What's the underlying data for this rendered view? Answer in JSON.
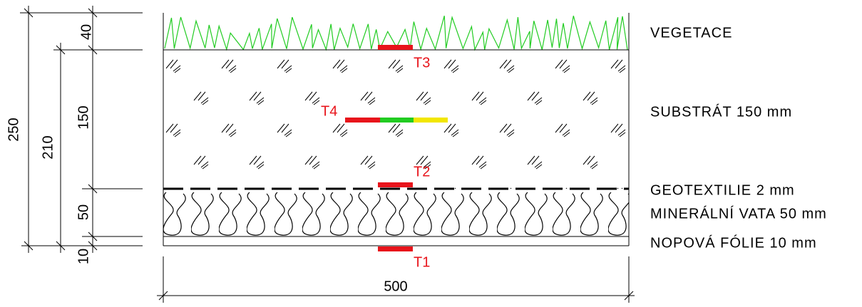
{
  "dimensions": {
    "vegetation": "40",
    "substrate": "150",
    "wool": "50",
    "foil": "10",
    "total": "250",
    "partial": "210",
    "width": "500"
  },
  "layers": [
    "VEGETACE",
    "SUBSTRÁT 150 mm",
    "GEOTEXTILIE 2 mm",
    "MINERÁLNÍ VATA 50 mm",
    "NOPOVÁ FÓLIE 10 mm"
  ],
  "sensors": [
    "T1",
    "T2",
    "T3",
    "T4"
  ]
}
